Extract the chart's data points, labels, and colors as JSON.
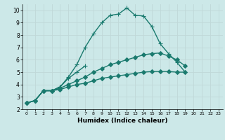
{
  "xlabel": "Humidex (Indice chaleur)",
  "xlim": [
    -0.5,
    23.5
  ],
  "ylim": [
    2,
    10.5
  ],
  "yticks": [
    2,
    3,
    4,
    5,
    6,
    7,
    8,
    9,
    10
  ],
  "xticks": [
    0,
    1,
    2,
    3,
    4,
    5,
    6,
    7,
    8,
    9,
    10,
    11,
    12,
    13,
    14,
    15,
    16,
    17,
    18,
    19,
    20,
    21,
    22,
    23
  ],
  "bg_color": "#cce8e8",
  "grid_color": "#ddeeee",
  "line_color": "#1a7a6e",
  "lines": [
    {
      "x": [
        0,
        1,
        2,
        3,
        4,
        5,
        6,
        7,
        8,
        9,
        10,
        11,
        12,
        13,
        14,
        15,
        16,
        17,
        18,
        19,
        20,
        21,
        22,
        23
      ],
      "y": [
        2.5,
        2.7,
        3.5,
        3.5,
        3.8,
        4.6,
        5.6,
        7.0,
        8.1,
        9.0,
        9.6,
        9.7,
        10.2,
        9.6,
        9.55,
        8.7,
        7.3,
        6.5,
        5.8,
        5.0,
        null,
        null,
        null,
        null
      ],
      "style": "-",
      "marker": "+",
      "markersize": 4,
      "linewidth": 1.0
    },
    {
      "x": [
        0,
        1,
        2,
        3,
        4,
        5,
        6,
        7
      ],
      "y": [
        2.5,
        2.7,
        3.5,
        3.5,
        3.8,
        4.5,
        5.0,
        5.5
      ],
      "style": "-",
      "marker": "+",
      "markersize": 4,
      "linewidth": 1.0
    },
    {
      "x": [
        0,
        1,
        2,
        3,
        4,
        5,
        6,
        7,
        8,
        9,
        10,
        11,
        12,
        13,
        14,
        15,
        16,
        17,
        18,
        19,
        20,
        21,
        22,
        23
      ],
      "y": [
        2.5,
        2.7,
        3.5,
        3.5,
        3.7,
        4.0,
        4.3,
        4.6,
        5.0,
        5.3,
        5.6,
        5.8,
        6.0,
        6.2,
        6.4,
        6.5,
        6.55,
        6.3,
        6.0,
        5.5,
        null,
        null,
        null,
        null
      ],
      "style": "-",
      "marker": "D",
      "markersize": 3,
      "linewidth": 1.0
    },
    {
      "x": [
        0,
        1,
        2,
        3,
        4,
        5,
        6,
        7,
        8,
        9,
        10,
        11,
        12,
        13,
        14,
        15,
        16,
        17,
        18,
        19,
        20,
        21,
        22,
        23
      ],
      "y": [
        2.5,
        2.7,
        3.5,
        3.5,
        3.6,
        3.8,
        4.0,
        4.1,
        4.3,
        4.5,
        4.6,
        4.7,
        4.8,
        4.9,
        5.0,
        5.05,
        5.05,
        5.05,
        5.0,
        5.0,
        null,
        null,
        null,
        null
      ],
      "style": "-",
      "marker": "D",
      "markersize": 3,
      "linewidth": 1.0
    }
  ]
}
